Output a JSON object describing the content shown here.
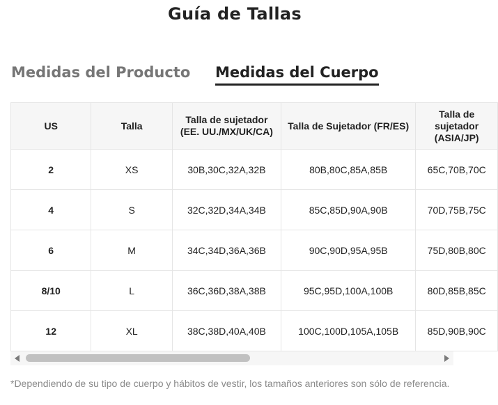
{
  "title": "Guía de Tallas",
  "tabs": [
    {
      "label": "Medidas del Producto",
      "active": false
    },
    {
      "label": "Medidas del Cuerpo",
      "active": true
    }
  ],
  "table": {
    "headers": [
      "US",
      "Talla",
      "Talla de sujetador (EE. UU./MX/UK/CA)",
      "Talla de Sujetador (FR/ES)",
      "Talla de sujetador (ASIA/JP)"
    ],
    "rows": [
      [
        "2",
        "XS",
        "30B,30C,32A,32B",
        "80B,80C,85A,85B",
        "65C,70B,70C"
      ],
      [
        "4",
        "S",
        "32C,32D,34A,34B",
        "85C,85D,90A,90B",
        "70D,75B,75C"
      ],
      [
        "6",
        "M",
        "34C,34D,36A,36B",
        "90C,90D,95A,95B",
        "75D,80B,80C"
      ],
      [
        "8/10",
        "L",
        "36C,36D,38A,38B",
        "95C,95D,100A,100B",
        "80D,85B,85C"
      ],
      [
        "12",
        "XL",
        "38C,38D,40A,40B",
        "100C,100D,105A,105B",
        "85D,90B,90C"
      ]
    ]
  },
  "scrollbar": {
    "left_arrow": "scroll-left-icon",
    "right_arrow": "scroll-right-icon"
  },
  "note": "*Dependiendo de su tipo de cuerpo y hábitos de vestir, los tamaños anteriores son sólo de referencia."
}
